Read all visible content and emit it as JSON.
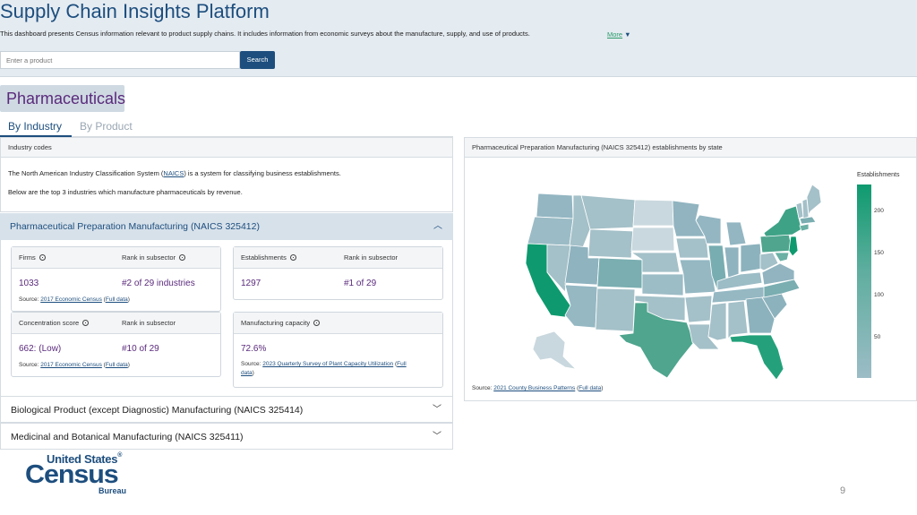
{
  "header": {
    "title": "Supply Chain Insights Platform",
    "description": "This dashboard presents Census information relevant to product supply chains. It includes information from economic surveys about the manufacture, supply, and use of products.",
    "more_label": "More",
    "more_caret": "▼",
    "search_placeholder": "Enter a product",
    "search_button": "Search"
  },
  "page_title": "Pharmaceuticals",
  "tabs": [
    {
      "label": "By Industry",
      "active": true
    },
    {
      "label": "By Product",
      "active": false
    }
  ],
  "industry_codes": {
    "heading": "Industry codes",
    "p1_before": "The North American Industry Classification System (",
    "p1_link": "NAICS",
    "p1_after": ") is a system for classifying business establishments.",
    "p2": "Below are the top 3 industries which manufacture pharmaceuticals by revenue."
  },
  "accordion": {
    "open_item": {
      "title": "Pharmaceutical Preparation Manufacturing (NAICS 325412)",
      "chevron": "︿",
      "cards": {
        "firms": {
          "label": "Firms",
          "rank_label": "Rank in subsector",
          "value": "1033",
          "rank": "#2 of 29 industries",
          "src_prefix": "Source: ",
          "src_link": "2017 Economic Census",
          "src_paren_open": " (",
          "src_full": "Full data",
          "src_paren_close": ")"
        },
        "establishments": {
          "label": "Establishments",
          "rank_label": "Rank in subsector",
          "value": "1297",
          "rank": "#1 of 29"
        },
        "concentration": {
          "label": "Concentration score",
          "rank_label": "Rank in subsector",
          "value": "662: (Low)",
          "rank": "#10 of 29",
          "src_prefix": "Source: ",
          "src_link": "2017 Economic Census",
          "src_paren_open": " (",
          "src_full": "Full data",
          "src_paren_close": ")"
        },
        "capacity": {
          "label": "Manufacturing capacity",
          "value": "72.6%",
          "src_prefix": "Source: ",
          "src_link": "2023 Quarterly Survey of Plant Capacity Utilization",
          "src_full_1": "Full",
          "src_full_2": "data",
          "src_paren_close": ")"
        }
      }
    },
    "closed_items": [
      {
        "title": "Biological Product (except Diagnostic) Manufacturing (NAICS 325414)",
        "chevron": "﹀"
      },
      {
        "title": "Medicinal and Botanical Manufacturing (NAICS 325411)",
        "chevron": "﹀"
      }
    ]
  },
  "map": {
    "heading": "Pharmaceutical Preparation Manufacturing (NAICS 325412) establishments by state",
    "legend_title": "Establishments",
    "legend_ticks": [
      "200",
      "150",
      "100",
      "50"
    ],
    "src_prefix": "Source: ",
    "src_link": "2021 County Business Patterns",
    "src_full": "Full data",
    "colors": {
      "high": "#0e9a6e",
      "mid": "#6ab0a4",
      "low": "#a4c0c8",
      "lowest": "#c9d8de"
    }
  },
  "logo": {
    "line1": "United States",
    "reg": "®",
    "line2": "Census",
    "line3": "Bureau"
  },
  "page_number": "9"
}
